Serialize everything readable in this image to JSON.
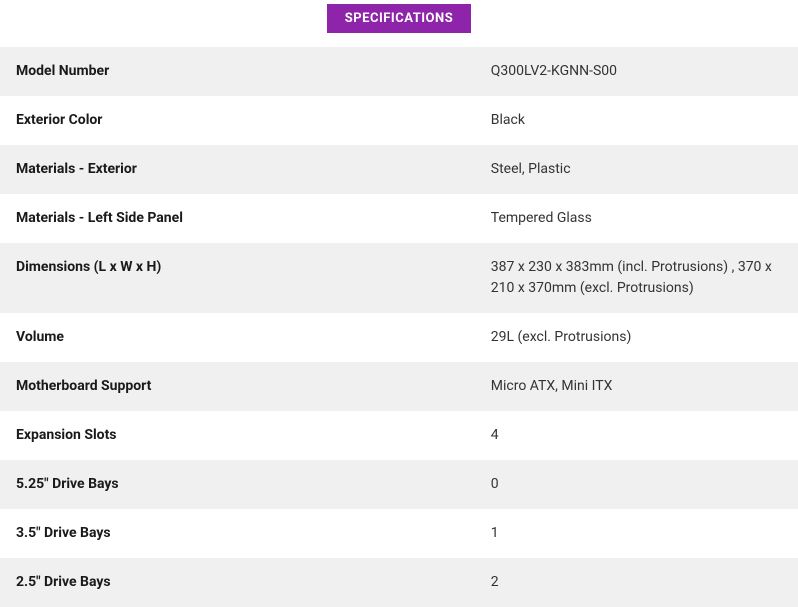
{
  "header": {
    "title": "SPECIFICATIONS"
  },
  "table": {
    "type": "table",
    "row_alt_bg": "#f0f0f0",
    "row_plain_bg": "#ffffff",
    "label_color": "#1a1a1a",
    "value_color": "#333333",
    "label_fontsize": 14,
    "value_fontsize": 14,
    "badge_bg": "#8e24aa",
    "badge_color": "#ffffff",
    "rows": [
      {
        "label": "Model Number",
        "value": "Q300LV2-KGNN-S00"
      },
      {
        "label": "Exterior Color",
        "value": "Black"
      },
      {
        "label": "Materials - Exterior",
        "value": "Steel, Plastic"
      },
      {
        "label": "Materials - Left Side Panel",
        "value": "Tempered Glass"
      },
      {
        "label": "Dimensions (L x W x H)",
        "value": "387 x 230 x 383mm (incl. Protrusions) , 370 x 210 x 370mm (excl. Protrusions)"
      },
      {
        "label": "Volume",
        "value": "29L (excl. Protrusions)"
      },
      {
        "label": "Motherboard Support",
        "value": "Micro ATX, Mini ITX"
      },
      {
        "label": "Expansion Slots",
        "value": "4"
      },
      {
        "label": "5.25\" Drive Bays",
        "value": "0"
      },
      {
        "label": "3.5\" Drive Bays",
        "value": "1"
      },
      {
        "label": "2.5\" Drive Bays",
        "value": "2"
      }
    ]
  }
}
